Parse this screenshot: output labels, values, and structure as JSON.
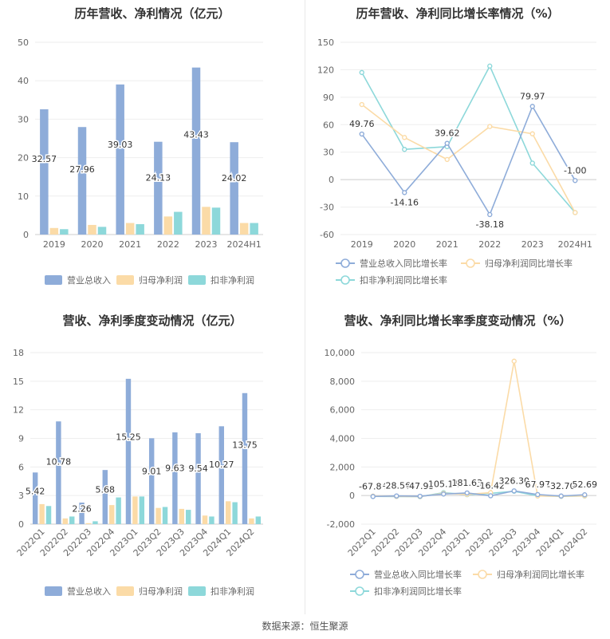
{
  "source_text": "数据来源：恒生聚源",
  "chart_data": [
    {
      "type": "bar",
      "title": "历年营收、净利情况（亿元）",
      "categories": [
        "2019",
        "2020",
        "2021",
        "2022",
        "2023",
        "2024H1"
      ],
      "ylim": [
        0,
        50
      ],
      "yticks": [
        0,
        10,
        20,
        30,
        40,
        50
      ],
      "grid": true,
      "legend_position": "bottom",
      "series": [
        {
          "name": "营业总收入",
          "color": "#8eacd9",
          "values": [
            32.57,
            27.96,
            39.03,
            24.13,
            43.43,
            24.02
          ]
        },
        {
          "name": "归母净利润",
          "color": "#fbdba7",
          "values": [
            1.7,
            2.5,
            3.0,
            4.7,
            7.2,
            3.0
          ]
        },
        {
          "name": "扣非净利润",
          "color": "#8dd8da",
          "values": [
            1.4,
            2.0,
            2.7,
            5.9,
            7.0,
            3.0
          ]
        }
      ],
      "data_labels": {
        "series": 0,
        "labels": [
          "32.57",
          "27.96",
          "39.03",
          "24.13",
          "43.43",
          "24.02"
        ]
      }
    },
    {
      "type": "line",
      "title": "历年营收、净利同比增长率情况（%）",
      "categories": [
        "2019",
        "2020",
        "2021",
        "2022",
        "2023",
        "2024H1"
      ],
      "ylim": [
        -60,
        150
      ],
      "yticks": [
        -60,
        -30,
        0,
        30,
        60,
        90,
        120,
        150
      ],
      "grid": true,
      "legend_position": "bottom",
      "series": [
        {
          "name": "营业总收入同比增长率",
          "color": "#8eacd9",
          "values": [
            49.76,
            -14.16,
            39.62,
            -38.18,
            79.97,
            -1.0
          ]
        },
        {
          "name": "归母净利润同比增长率",
          "color": "#fbdba7",
          "values": [
            82,
            46,
            22,
            58,
            50,
            -36
          ]
        },
        {
          "name": "扣非净利润同比增长率",
          "color": "#8dd8da",
          "values": [
            117,
            33,
            36,
            124,
            18,
            -36
          ]
        }
      ],
      "data_labels": {
        "series": 0,
        "labels": [
          "49.76",
          "-14.16",
          "39.62",
          "-38.18",
          "79.97",
          "-1.00"
        ]
      }
    },
    {
      "type": "bar",
      "title": "营收、净利季度变动情况（亿元）",
      "categories": [
        "2022Q1",
        "2022Q2",
        "2022Q3",
        "2022Q4",
        "2023Q1",
        "2023Q2",
        "2023Q3",
        "2023Q4",
        "2024Q1",
        "2024Q2"
      ],
      "ylim": [
        0,
        18
      ],
      "yticks": [
        0,
        3,
        6,
        9,
        12,
        15,
        18
      ],
      "grid": true,
      "legend_position": "bottom",
      "series": [
        {
          "name": "营业总收入",
          "color": "#8eacd9",
          "values": [
            5.42,
            10.78,
            2.26,
            5.68,
            15.25,
            9.01,
            9.63,
            9.54,
            10.27,
            13.75
          ]
        },
        {
          "name": "归母净利润",
          "color": "#fbdba7",
          "values": [
            2.1,
            0.6,
            0.1,
            2.0,
            2.9,
            1.7,
            1.6,
            0.9,
            2.4,
            0.6
          ]
        },
        {
          "name": "扣非净利润",
          "color": "#8dd8da",
          "values": [
            1.9,
            0.8,
            0.3,
            2.8,
            2.9,
            1.8,
            1.5,
            0.8,
            2.3,
            0.8
          ]
        }
      ],
      "data_labels": {
        "series": 0,
        "labels": [
          "5.42",
          "10.78",
          "2.26",
          "5.68",
          "15.25",
          "9.01",
          "9.63",
          "9.54",
          "10.27",
          "13.75"
        ]
      }
    },
    {
      "type": "line",
      "title": "营收、净利同比增长率季度变动情况（%）",
      "categories": [
        "2022Q1",
        "2022Q2",
        "2022Q3",
        "2022Q4",
        "2023Q1",
        "2023Q2",
        "2023Q3",
        "2023Q4",
        "2024Q1",
        "2024Q2"
      ],
      "ylim": [
        -2000,
        10000
      ],
      "yticks": [
        -2000,
        0,
        2000,
        4000,
        6000,
        8000,
        10000
      ],
      "ytick_labels": [
        "-2,000",
        "0",
        "2,000",
        "4,000",
        "6,000",
        "8,000",
        "10,000"
      ],
      "grid": true,
      "legend_position": "bottom",
      "series": [
        {
          "name": "营业总收入同比增长率",
          "color": "#8eacd9",
          "values": [
            -67.84,
            -28.56,
            -47.95,
            105.11,
            181.63,
            -16.42,
            326.3,
            67.97,
            -32.7,
            52.69
          ]
        },
        {
          "name": "归母净利润同比增长率",
          "color": "#fbdba7",
          "values": [
            -40,
            -60,
            -70,
            150,
            80,
            200,
            9400,
            -30,
            -50,
            -20
          ]
        },
        {
          "name": "扣非净利润同比增长率",
          "color": "#8dd8da",
          "values": [
            -60,
            -70,
            -80,
            200,
            60,
            150,
            300,
            -20,
            -60,
            -30
          ]
        }
      ],
      "data_labels": {
        "series": 0,
        "labels": [
          "-67.84",
          "-28.56",
          "-47.95",
          "105.11",
          "181.63",
          "-16.42",
          "326.30",
          "67.97",
          "-32.70",
          "52.69"
        ]
      }
    }
  ]
}
